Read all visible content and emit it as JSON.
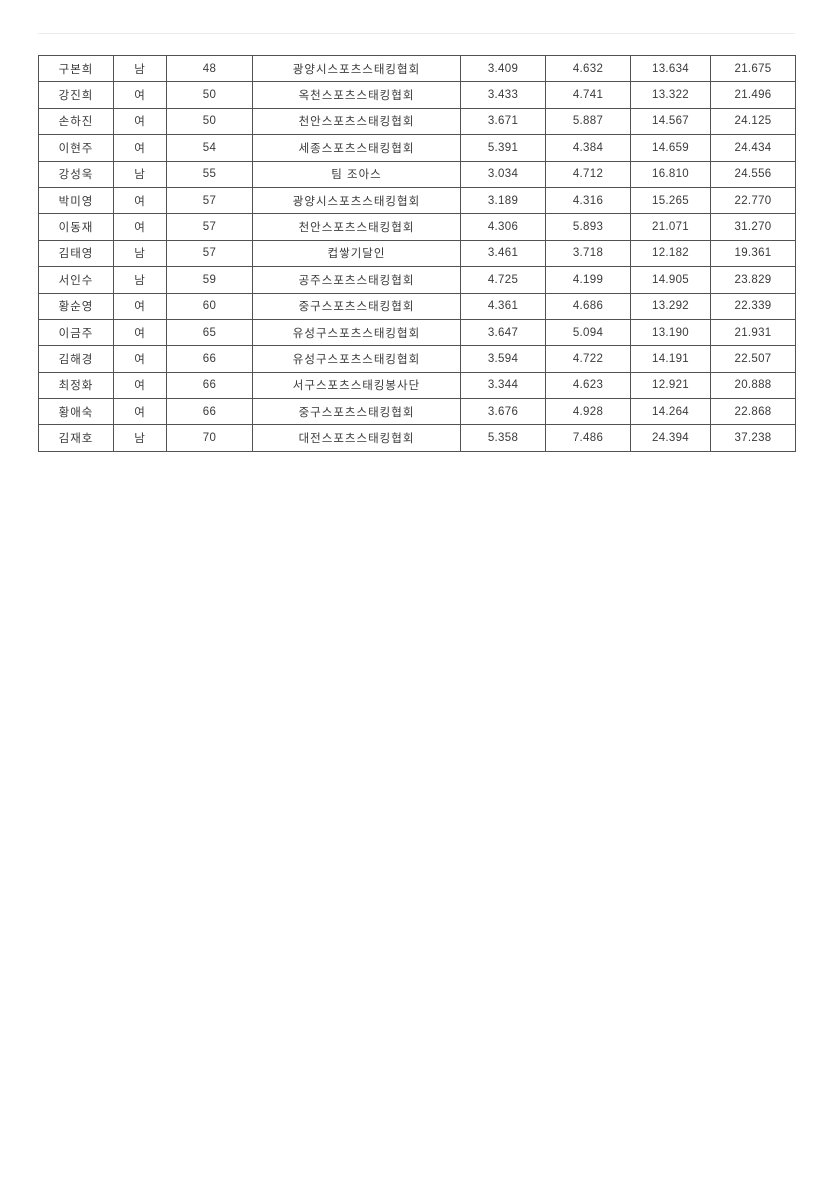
{
  "colors": {
    "page_background": "#ffffff",
    "table_border": "#525252",
    "table_text": "#3a3a3a"
  },
  "table": {
    "columns": [
      {
        "key": "name",
        "kind": "ko"
      },
      {
        "key": "gender",
        "kind": "ko"
      },
      {
        "key": "age",
        "kind": "num"
      },
      {
        "key": "team",
        "kind": "ko"
      },
      {
        "key": "time1",
        "kind": "num"
      },
      {
        "key": "time2",
        "kind": "num"
      },
      {
        "key": "time3",
        "kind": "num"
      },
      {
        "key": "time4",
        "kind": "num"
      }
    ],
    "rows": [
      {
        "name": "구본희",
        "gender": "남",
        "age": "48",
        "team": "광양시스포츠스태킹협회",
        "time1": "3.409",
        "time2": "4.632",
        "time3": "13.634",
        "time4": "21.675"
      },
      {
        "name": "강진희",
        "gender": "여",
        "age": "50",
        "team": "옥천스포츠스태킹협회",
        "time1": "3.433",
        "time2": "4.741",
        "time3": "13.322",
        "time4": "21.496"
      },
      {
        "name": "손하진",
        "gender": "여",
        "age": "50",
        "team": "천안스포츠스태킹협회",
        "time1": "3.671",
        "time2": "5.887",
        "time3": "14.567",
        "time4": "24.125"
      },
      {
        "name": "이현주",
        "gender": "여",
        "age": "54",
        "team": "세종스포츠스태킹협회",
        "time1": "5.391",
        "time2": "4.384",
        "time3": "14.659",
        "time4": "24.434"
      },
      {
        "name": "강성욱",
        "gender": "남",
        "age": "55",
        "team": "팀 조아스",
        "time1": "3.034",
        "time2": "4.712",
        "time3": "16.810",
        "time4": "24.556"
      },
      {
        "name": "박미영",
        "gender": "여",
        "age": "57",
        "team": "광양시스포츠스태킹협회",
        "time1": "3.189",
        "time2": "4.316",
        "time3": "15.265",
        "time4": "22.770"
      },
      {
        "name": "이동재",
        "gender": "여",
        "age": "57",
        "team": "천안스포츠스태킹협회",
        "time1": "4.306",
        "time2": "5.893",
        "time3": "21.071",
        "time4": "31.270"
      },
      {
        "name": "김태영",
        "gender": "남",
        "age": "57",
        "team": "컵쌓기달인",
        "time1": "3.461",
        "time2": "3.718",
        "time3": "12.182",
        "time4": "19.361"
      },
      {
        "name": "서인수",
        "gender": "남",
        "age": "59",
        "team": "공주스포츠스태킹협회",
        "time1": "4.725",
        "time2": "4.199",
        "time3": "14.905",
        "time4": "23.829"
      },
      {
        "name": "황순영",
        "gender": "여",
        "age": "60",
        "team": "중구스포츠스태킹협회",
        "time1": "4.361",
        "time2": "4.686",
        "time3": "13.292",
        "time4": "22.339"
      },
      {
        "name": "이금주",
        "gender": "여",
        "age": "65",
        "team": "유성구스포츠스태킹협회",
        "time1": "3.647",
        "time2": "5.094",
        "time3": "13.190",
        "time4": "21.931"
      },
      {
        "name": "김해경",
        "gender": "여",
        "age": "66",
        "team": "유성구스포츠스태킹협회",
        "time1": "3.594",
        "time2": "4.722",
        "time3": "14.191",
        "time4": "22.507"
      },
      {
        "name": "최정화",
        "gender": "여",
        "age": "66",
        "team": "서구스포츠스태킹봉사단",
        "time1": "3.344",
        "time2": "4.623",
        "time3": "12.921",
        "time4": "20.888"
      },
      {
        "name": "황애숙",
        "gender": "여",
        "age": "66",
        "team": "중구스포츠스태킹협회",
        "time1": "3.676",
        "time2": "4.928",
        "time3": "14.264",
        "time4": "22.868"
      },
      {
        "name": "김재호",
        "gender": "남",
        "age": "70",
        "team": "대전스포츠스태킹협회",
        "time1": "5.358",
        "time2": "7.486",
        "time3": "24.394",
        "time4": "37.238"
      }
    ]
  }
}
